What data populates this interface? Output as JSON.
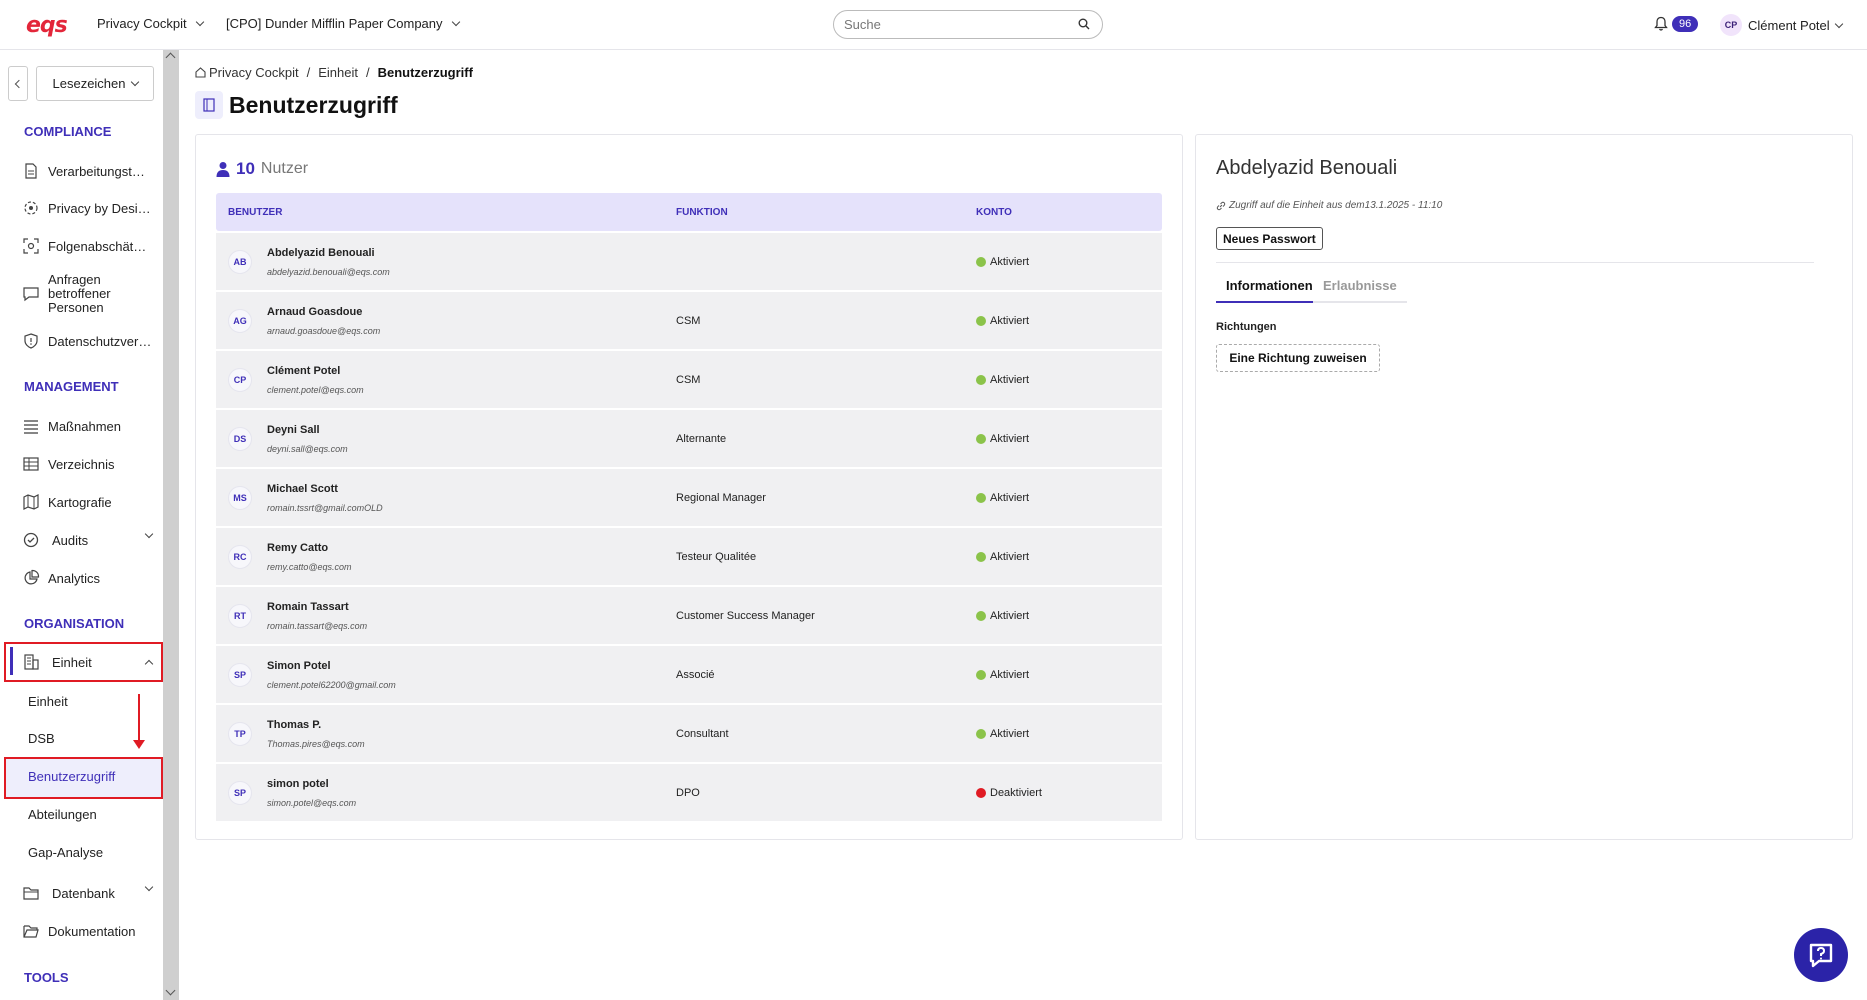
{
  "app": {
    "logo": "eqs",
    "module": "Privacy Cockpit",
    "company": "[CPO] Dunder Mifflin Paper Company"
  },
  "search": {
    "placeholder": "Suche"
  },
  "notifications": {
    "count": "96"
  },
  "user": {
    "initials": "CP",
    "name": "Clément Potel"
  },
  "sidebar": {
    "bookmarks_label": "Lesezeichen",
    "sections": {
      "compliance": "COMPLIANCE",
      "management": "MANAGEMENT",
      "organisation": "ORGANISATION",
      "tools": "TOOLS"
    },
    "compliance_items": [
      "Verarbeitungstätigkeiten",
      "Privacy by Design",
      "Folgenabschätzungen",
      "Anfragen betroffener Personen",
      "Datenschutzverletzungen"
    ],
    "management_items": [
      "Maßnahmen",
      "Verzeichnis",
      "Kartografie",
      "Audits",
      "Analytics"
    ],
    "organisation": {
      "einheit": "Einheit",
      "sub": [
        "Einheit",
        "DSB",
        "Benutzerzugriff",
        "Abteilungen",
        "Gap-Analyse"
      ],
      "datenbank": "Datenbank",
      "dokumentation": "Dokumentation"
    }
  },
  "breadcrumb": [
    "Privacy Cockpit",
    "Einheit",
    "Benutzerzugriff"
  ],
  "page": {
    "title": "Benutzerzugriff"
  },
  "users": {
    "count": "10",
    "label": "Nutzer",
    "columns": {
      "user": "BENUTZER",
      "function": "FUNKTION",
      "account": "KONTO"
    },
    "rows": [
      {
        "initials": "AB",
        "name": "Abdelyazid Benouali",
        "email": "abdelyazid.benouali@eqs.com",
        "function": "",
        "status": "Aktiviert",
        "active": true
      },
      {
        "initials": "AG",
        "name": "Arnaud Goasdoue",
        "email": "arnaud.goasdoue@eqs.com",
        "function": "CSM",
        "status": "Aktiviert",
        "active": true
      },
      {
        "initials": "CP",
        "name": "Clément Potel",
        "email": "clement.potel@eqs.com",
        "function": "CSM",
        "status": "Aktiviert",
        "active": true
      },
      {
        "initials": "DS",
        "name": "Deyni Sall",
        "email": "deyni.sall@eqs.com",
        "function": "Alternante",
        "status": "Aktiviert",
        "active": true
      },
      {
        "initials": "MS",
        "name": "Michael Scott",
        "email": "romain.tssrt@gmail.comOLD",
        "function": "Regional Manager",
        "status": "Aktiviert",
        "active": true
      },
      {
        "initials": "RC",
        "name": "Remy Catto",
        "email": "remy.catto@eqs.com",
        "function": "Testeur Qualitée",
        "status": "Aktiviert",
        "active": true
      },
      {
        "initials": "RT",
        "name": "Romain Tassart",
        "email": "romain.tassart@eqs.com",
        "function": "Customer Success Manager",
        "status": "Aktiviert",
        "active": true
      },
      {
        "initials": "SP",
        "name": "Simon Potel",
        "email": "clement.potel62200@gmail.com",
        "function": "Associé",
        "status": "Aktiviert",
        "active": true
      },
      {
        "initials": "TP",
        "name": "Thomas P.",
        "email": "Thomas.pires@eqs.com",
        "function": "Consultant",
        "status": "Aktiviert",
        "active": true
      },
      {
        "initials": "SP",
        "name": "simon potel",
        "email": "simon.potel@eqs.com",
        "function": "DPO",
        "status": "Deaktiviert",
        "active": false
      }
    ]
  },
  "detail": {
    "name": "Abdelyazid Benouali",
    "access": "Zugriff auf die Einheit aus dem13.1.2025 - 11:10",
    "new_password": "Neues Passwort",
    "tabs": [
      "Informationen",
      "Erlaubnisse"
    ],
    "directions_label": "Richtungen",
    "assign_direction": "Eine Richtung zuweisen"
  },
  "colors": {
    "accent": "#3f2fb8",
    "active": "#8bc34a",
    "inactive": "#e01b24",
    "brand": "#e3263a"
  }
}
